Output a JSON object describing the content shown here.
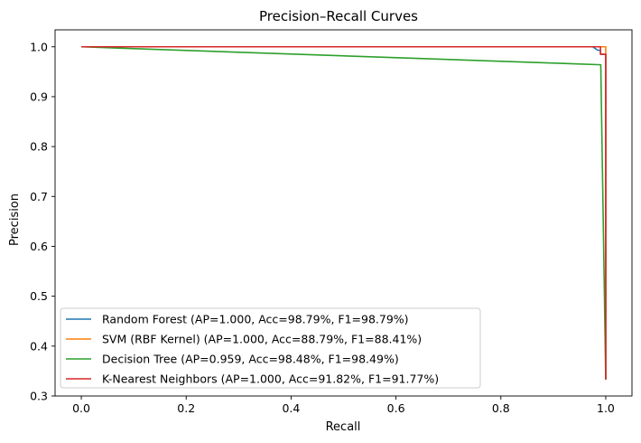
{
  "chart_data": {
    "type": "line",
    "title": "Precision–Recall Curves",
    "xlabel": "Recall",
    "ylabel": "Precision",
    "xlim": [
      -0.05,
      1.05
    ],
    "ylim": [
      0.3,
      1.034
    ],
    "xticks": [
      "0.0",
      "0.2",
      "0.4",
      "0.6",
      "0.8",
      "1.0"
    ],
    "yticks": [
      "0.3",
      "0.4",
      "0.5",
      "0.6",
      "0.7",
      "0.8",
      "0.9",
      "1.0"
    ],
    "grid": false,
    "legend_position": "lower left",
    "series": [
      {
        "name": "Random Forest (AP=1.000, Acc=98.79%, F1=98.79%)",
        "color": "#1f77b4",
        "x": [
          0.0,
          0.975,
          0.985,
          0.99,
          0.99,
          1.0,
          1.0
        ],
        "y": [
          1.0,
          1.0,
          0.993,
          0.993,
          0.985,
          0.985,
          0.333
        ]
      },
      {
        "name": "SVM (RBF Kernel) (AP=1.000, Acc=88.79%, F1=88.41%)",
        "color": "#ff7f0e",
        "x": [
          0.0,
          1.0,
          1.0
        ],
        "y": [
          1.0,
          1.0,
          0.333
        ]
      },
      {
        "name": "Decision Tree (AP=0.959, Acc=98.48%, F1=98.49%)",
        "color": "#2ca02c",
        "x": [
          0.0,
          0.9905,
          1.0
        ],
        "y": [
          1.0,
          0.964,
          0.333
        ]
      },
      {
        "name": "K-Nearest Neighbors (AP=1.000, Acc=91.82%, F1=91.77%)",
        "color": "#d62728",
        "x": [
          0.0,
          0.99,
          0.99,
          1.0,
          1.0
        ],
        "y": [
          1.0,
          1.0,
          0.985,
          0.985,
          0.333
        ]
      }
    ]
  }
}
